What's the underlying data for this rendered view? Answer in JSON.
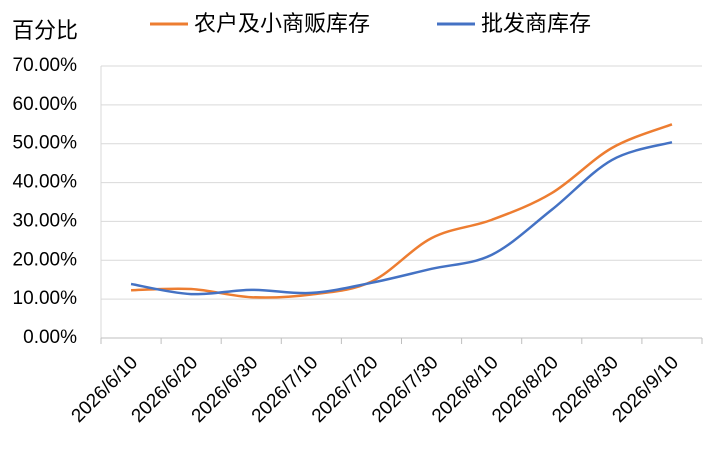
{
  "chart_data": {
    "type": "line",
    "y_label": "百分比",
    "categories": [
      "2026/6/10",
      "2026/6/20",
      "2026/6/30",
      "2026/7/10",
      "2026/7/20",
      "2026/7/30",
      "2026/8/10",
      "2026/8/20",
      "2026/8/30",
      "2026/9/10"
    ],
    "series": [
      {
        "name": "农户及小商贩库存",
        "color": "#ed7d31",
        "values": [
          12.3,
          12.6,
          10.5,
          11.2,
          14.5,
          25.7,
          30.4,
          37.3,
          48.9,
          55.0
        ]
      },
      {
        "name": "批发商库存",
        "color": "#4472c4",
        "values": [
          13.9,
          11.3,
          12.4,
          11.6,
          14.2,
          17.8,
          21.4,
          33.0,
          45.8,
          50.4
        ]
      }
    ],
    "ylim": [
      0,
      70
    ],
    "yticks": [
      {
        "value": 0,
        "label": "0.00%"
      },
      {
        "value": 10,
        "label": "10.00%"
      },
      {
        "value": 20,
        "label": "20.00%"
      },
      {
        "value": 30,
        "label": "30.00%"
      },
      {
        "value": 40,
        "label": "40.00%"
      },
      {
        "value": 50,
        "label": "50.00%"
      },
      {
        "value": 60,
        "label": "60.00%"
      },
      {
        "value": 70,
        "label": "70.00%"
      }
    ],
    "grid": true,
    "legend": "top"
  }
}
